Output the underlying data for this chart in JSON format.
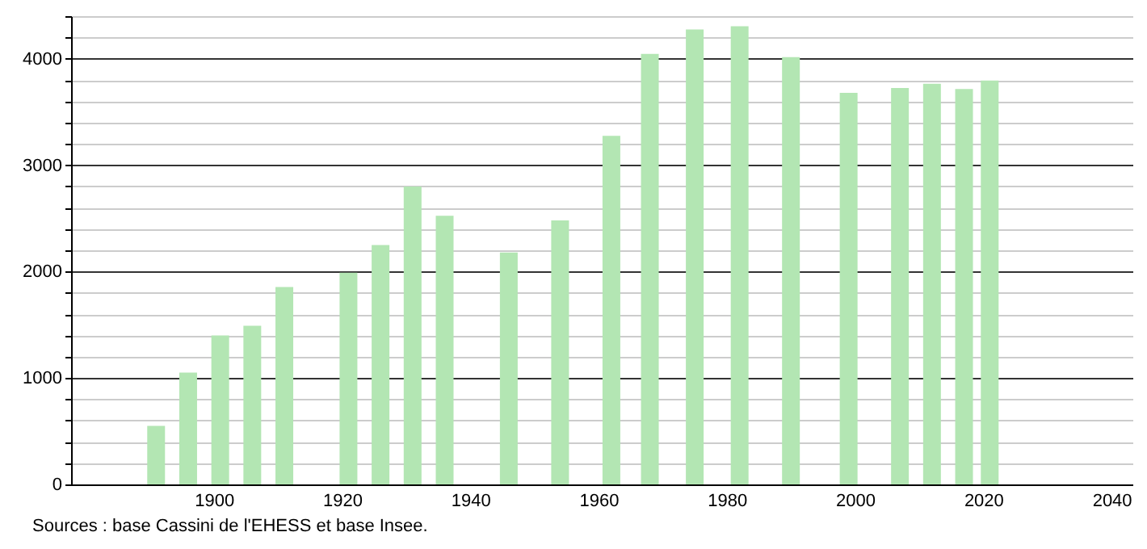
{
  "chart_data": {
    "type": "bar",
    "x": [
      1891,
      1896,
      1901,
      1906,
      1911,
      1921,
      1926,
      1931,
      1936,
      1946,
      1954,
      1962,
      1968,
      1975,
      1982,
      1990,
      1999,
      2007,
      2012,
      2017,
      2021
    ],
    "values": [
      550,
      1050,
      1400,
      1490,
      1855,
      1990,
      2250,
      2800,
      2525,
      2180,
      2480,
      3275,
      4045,
      4275,
      4305,
      4015,
      3680,
      3725,
      3765,
      3715,
      3795
    ],
    "color": "#b3e6b3",
    "xlim": [
      1879,
      2042
    ],
    "xticks": [
      1900,
      1920,
      1940,
      1960,
      1980,
      2000,
      2020,
      2040
    ],
    "ylim": [
      0,
      4400
    ],
    "yticks": [
      0,
      {
        "value": 200,
        "label": null
      },
      {
        "value": 400,
        "label": null
      },
      {
        "value": 600,
        "label": null
      },
      {
        "value": 800,
        "label": null
      },
      1000,
      {
        "value": 1200,
        "label": null
      },
      {
        "value": 1400,
        "label": null
      },
      {
        "value": 1600,
        "label": null
      },
      {
        "value": 1800,
        "label": null
      },
      2000,
      {
        "value": 2200,
        "label": null
      },
      {
        "value": 2400,
        "label": null
      },
      {
        "value": 2600,
        "label": null
      },
      {
        "value": 2800,
        "label": null
      },
      3000,
      {
        "value": 3200,
        "label": null
      },
      {
        "value": 3400,
        "label": null
      },
      {
        "value": 3600,
        "label": null
      },
      {
        "value": 3800,
        "label": null
      },
      4000,
      {
        "value": 4200,
        "label": null
      },
      {
        "value": 4400,
        "label": null
      }
    ],
    "grid": "y",
    "annotations": [
      "Sources : base Cassini de l'EHESS et base Insee."
    ]
  }
}
